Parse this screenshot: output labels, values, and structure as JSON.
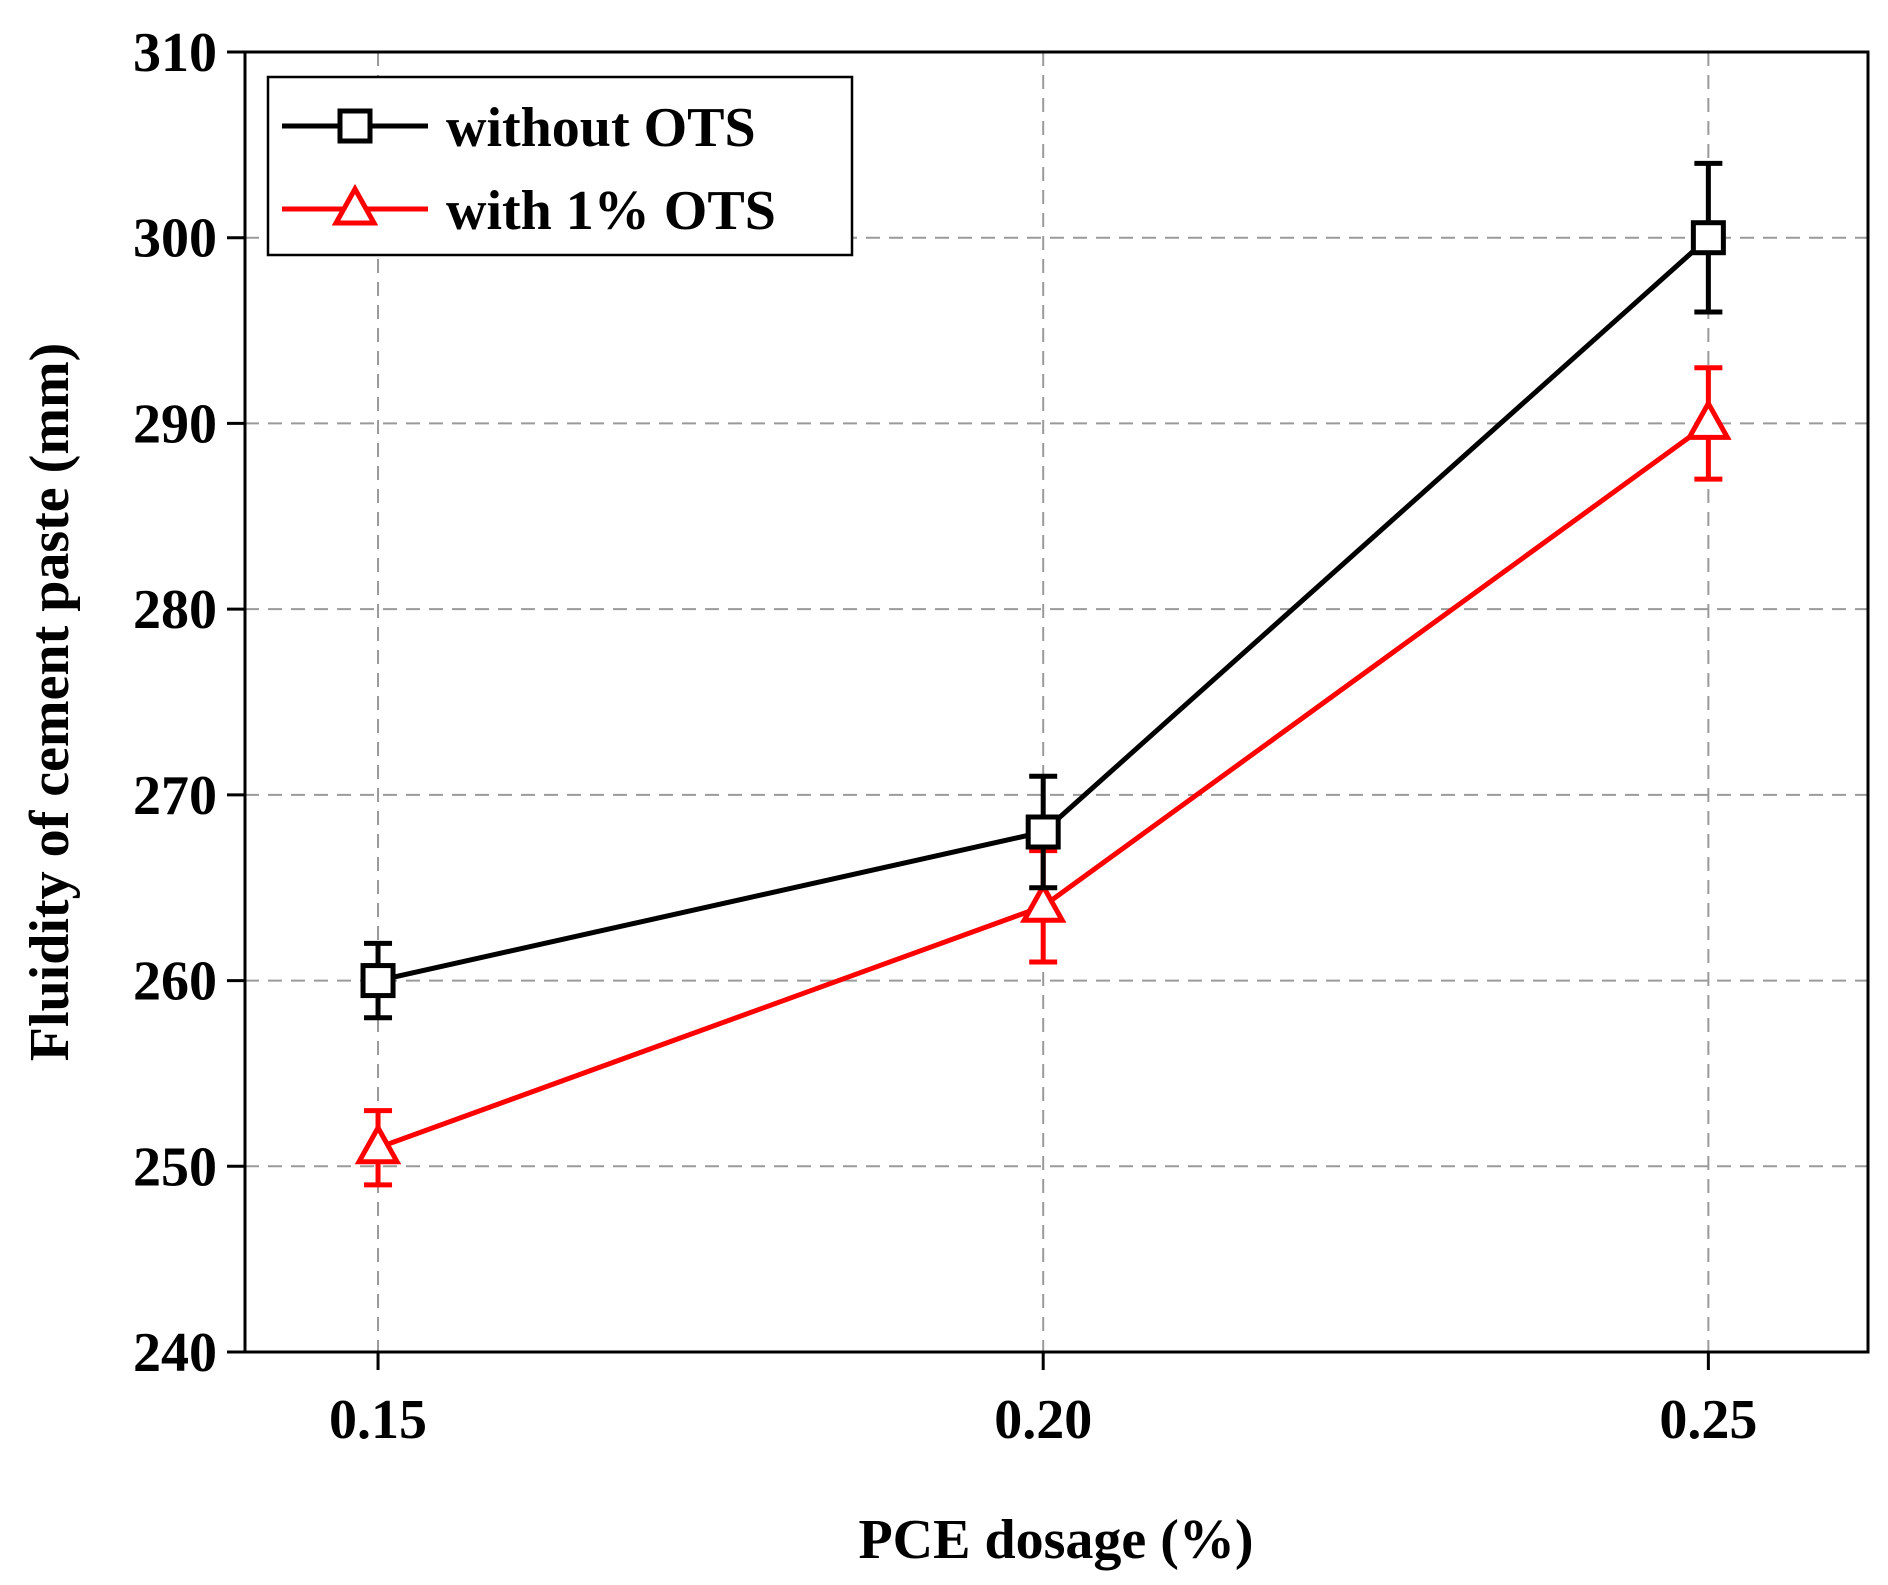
{
  "chart_data": {
    "type": "line",
    "title": "",
    "xlabel": "PCE dosage (%)",
    "ylabel": "Fluidity of cement paste (mm)",
    "xlim": [
      0.14,
      0.262
    ],
    "ylim": [
      240,
      310
    ],
    "x": [
      0.15,
      0.2,
      0.25
    ],
    "xtick_labels": [
      "0.15",
      "0.20",
      "0.25"
    ],
    "yticks": [
      240,
      250,
      260,
      270,
      280,
      290,
      300,
      310
    ],
    "ytick_labels": [
      "240",
      "250",
      "260",
      "270",
      "280",
      "290",
      "300",
      "310"
    ],
    "grid": true,
    "legend_position": "top-left",
    "series": [
      {
        "name": "without OTS",
        "color": "#000000",
        "marker": "square",
        "values": [
          260,
          268,
          300
        ],
        "errors": [
          2,
          3,
          4
        ]
      },
      {
        "name": "with 1% OTS",
        "color": "#ff0000",
        "marker": "triangle",
        "values": [
          251,
          264,
          290
        ],
        "errors": [
          2,
          3,
          3
        ]
      }
    ]
  }
}
